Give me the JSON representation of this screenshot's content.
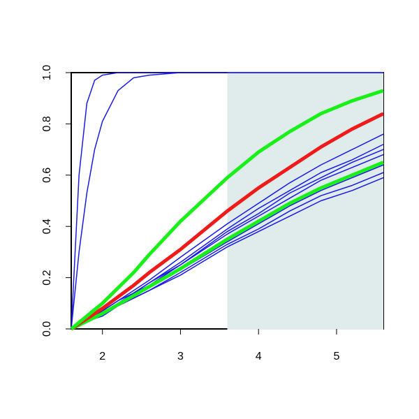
{
  "chart_data": {
    "type": "line",
    "x": [
      1.6,
      1.7,
      1.8,
      1.9,
      2.0,
      2.2,
      2.4,
      2.6,
      3.0,
      3.6,
      4.0,
      4.4,
      4.8,
      5.2,
      5.6
    ],
    "xlim": [
      1.6,
      5.6
    ],
    "xticks": [
      2,
      3,
      4,
      5
    ],
    "ylim": [
      0,
      1
    ],
    "yticks": [
      {
        "value": 0,
        "label": "0.0"
      },
      0.2,
      0.4,
      0.6,
      0.8,
      {
        "value": 1,
        "label": "1.0"
      }
    ],
    "shaded_x": [
      3.6,
      5.6
    ],
    "shade_color": "#e0ecec",
    "series": [
      {
        "color": "#1a1ae6",
        "line_width": 1.5,
        "values": [
          0,
          0.6,
          0.88,
          0.97,
          0.99,
          1,
          1,
          1,
          1,
          1,
          1,
          1,
          1,
          1,
          1
        ]
      },
      {
        "color": "#1a1ae6",
        "line_width": 1.5,
        "values": [
          0,
          0.3,
          0.53,
          0.7,
          0.81,
          0.93,
          0.98,
          0.99,
          1,
          1,
          1,
          1,
          1,
          1,
          1
        ]
      },
      {
        "color": "#1a1ae6",
        "line_width": 1.5,
        "values": [
          0,
          0.02,
          0.03,
          0.05,
          0.07,
          0.11,
          0.15,
          0.19,
          0.28,
          0.41,
          0.49,
          0.57,
          0.64,
          0.7,
          0.76
        ]
      },
      {
        "color": "#1a1ae6",
        "line_width": 1.5,
        "values": [
          0,
          0.02,
          0.03,
          0.05,
          0.07,
          0.11,
          0.14,
          0.18,
          0.26,
          0.39,
          0.47,
          0.54,
          0.61,
          0.66,
          0.72
        ]
      },
      {
        "color": "#1a1ae6",
        "line_width": 1.5,
        "values": [
          0,
          0.02,
          0.03,
          0.05,
          0.06,
          0.1,
          0.14,
          0.18,
          0.25,
          0.38,
          0.45,
          0.53,
          0.59,
          0.65,
          0.7
        ]
      },
      {
        "color": "#1a1ae6",
        "line_width": 1.5,
        "values": [
          0,
          0.02,
          0.03,
          0.05,
          0.06,
          0.1,
          0.14,
          0.17,
          0.25,
          0.37,
          0.44,
          0.51,
          0.58,
          0.63,
          0.68
        ]
      },
      {
        "color": "#1a1ae6",
        "line_width": 1.5,
        "values": [
          0,
          0.01,
          0.03,
          0.04,
          0.06,
          0.09,
          0.13,
          0.16,
          0.23,
          0.34,
          0.41,
          0.48,
          0.54,
          0.59,
          0.64
        ]
      },
      {
        "color": "#1a1ae6",
        "line_width": 1.5,
        "values": [
          0,
          0.01,
          0.03,
          0.04,
          0.06,
          0.09,
          0.12,
          0.15,
          0.22,
          0.33,
          0.39,
          0.46,
          0.52,
          0.56,
          0.61
        ]
      },
      {
        "color": "#1a1ae6",
        "line_width": 1.5,
        "values": [
          0,
          0.01,
          0.03,
          0.04,
          0.05,
          0.09,
          0.12,
          0.15,
          0.21,
          0.32,
          0.38,
          0.44,
          0.5,
          0.54,
          0.59
        ]
      },
      {
        "color": "#19ef19",
        "line_width": 5,
        "values": [
          0,
          0.015,
          0.03,
          0.045,
          0.06,
          0.095,
          0.13,
          0.165,
          0.235,
          0.35,
          0.42,
          0.49,
          0.55,
          0.6,
          0.65
        ]
      },
      {
        "color": "#ef1a1a",
        "line_width": 5,
        "values": [
          0,
          0.02,
          0.04,
          0.06,
          0.08,
          0.125,
          0.17,
          0.22,
          0.31,
          0.46,
          0.55,
          0.63,
          0.71,
          0.78,
          0.84
        ]
      },
      {
        "color": "#19ef19",
        "line_width": 5,
        "values": [
          0,
          0.025,
          0.05,
          0.075,
          0.1,
          0.16,
          0.22,
          0.29,
          0.42,
          0.59,
          0.69,
          0.77,
          0.84,
          0.89,
          0.93
        ]
      }
    ]
  }
}
